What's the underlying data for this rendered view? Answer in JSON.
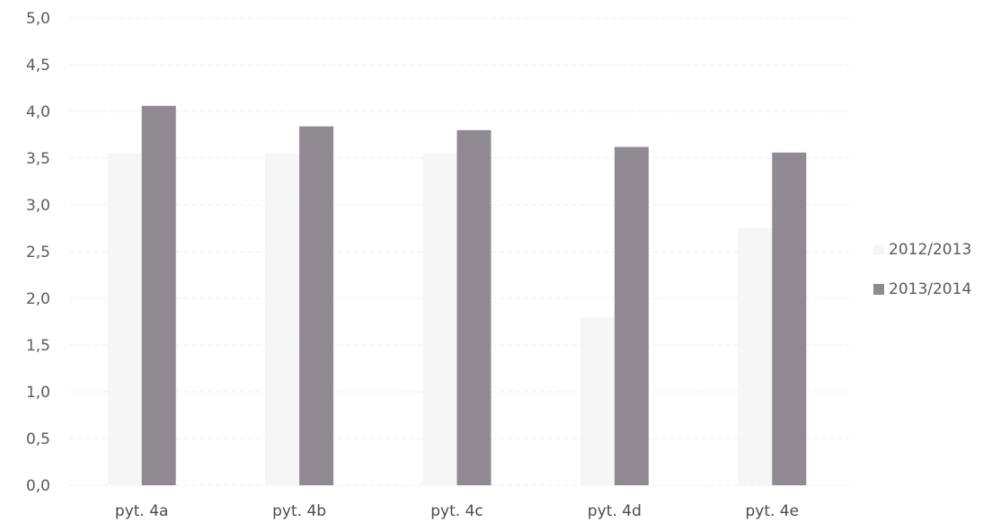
{
  "chart_data": {
    "type": "bar",
    "categories": [
      "pyt. 4a",
      "pyt. 4b",
      "pyt. 4c",
      "pyt. 4d",
      "pyt. 4e"
    ],
    "series": [
      {
        "name": "2012/2013",
        "values": [
          3.55,
          3.55,
          3.55,
          1.8,
          2.75
        ],
        "color": "#f6f6f6"
      },
      {
        "name": "2013/2014",
        "values": [
          4.06,
          3.84,
          3.8,
          3.62,
          3.56
        ],
        "color": "#8f8a92"
      }
    ],
    "title": "",
    "xlabel": "",
    "ylabel": "",
    "ylim": [
      0,
      5
    ],
    "yticks": [
      "0,0",
      "0,5",
      "1,0",
      "1,5",
      "2,0",
      "2,5",
      "3,0",
      "3,5",
      "4,0",
      "4,5",
      "5,0"
    ],
    "grid": true,
    "grid_color": "#ececec",
    "legend_position": "right"
  }
}
